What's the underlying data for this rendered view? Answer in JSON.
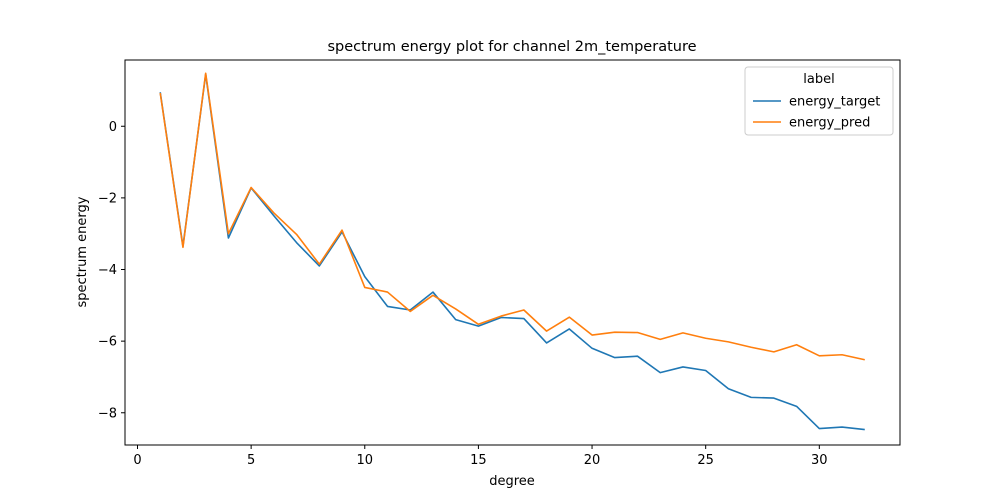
{
  "chart_data": {
    "type": "line",
    "title": "spectrum energy plot for channel 2m_temperature",
    "xlabel": "degree",
    "ylabel": "spectrum energy",
    "xlim": [
      -0.55,
      33.55
    ],
    "ylim": [
      -8.9,
      1.85
    ],
    "xticks": [
      0,
      5,
      10,
      15,
      20,
      25,
      30
    ],
    "yticks": [
      0,
      -2,
      -4,
      -6,
      -8
    ],
    "grid": false,
    "legend": {
      "title": "label",
      "placement": "top-right"
    },
    "x": [
      1,
      2,
      3,
      4,
      5,
      6,
      7,
      8,
      9,
      10,
      11,
      12,
      13,
      14,
      15,
      16,
      17,
      18,
      19,
      20,
      21,
      22,
      23,
      24,
      25,
      26,
      27,
      28,
      29,
      30,
      31,
      32
    ],
    "series": [
      {
        "name": "energy_target",
        "color": "#1f77b4",
        "values": [
          0.95,
          -3.35,
          1.45,
          -3.12,
          -1.72,
          -2.5,
          -3.25,
          -3.9,
          -2.95,
          -4.2,
          -5.03,
          -5.13,
          -4.63,
          -5.4,
          -5.58,
          -5.34,
          -5.37,
          -6.05,
          -5.66,
          -6.2,
          -6.46,
          -6.42,
          -6.88,
          -6.72,
          -6.82,
          -7.33,
          -7.57,
          -7.59,
          -7.82,
          -8.44,
          -8.4,
          -8.47
        ]
      },
      {
        "name": "energy_pred",
        "color": "#ff7f0e",
        "values": [
          0.93,
          -3.38,
          1.48,
          -3.0,
          -1.71,
          -2.42,
          -3.02,
          -3.85,
          -2.9,
          -4.5,
          -4.63,
          -5.17,
          -4.72,
          -5.1,
          -5.53,
          -5.3,
          -5.13,
          -5.72,
          -5.33,
          -5.83,
          -5.75,
          -5.76,
          -5.95,
          -5.77,
          -5.92,
          -6.02,
          -6.17,
          -6.3,
          -6.1,
          -6.41,
          -6.38,
          -6.52
        ]
      }
    ]
  }
}
